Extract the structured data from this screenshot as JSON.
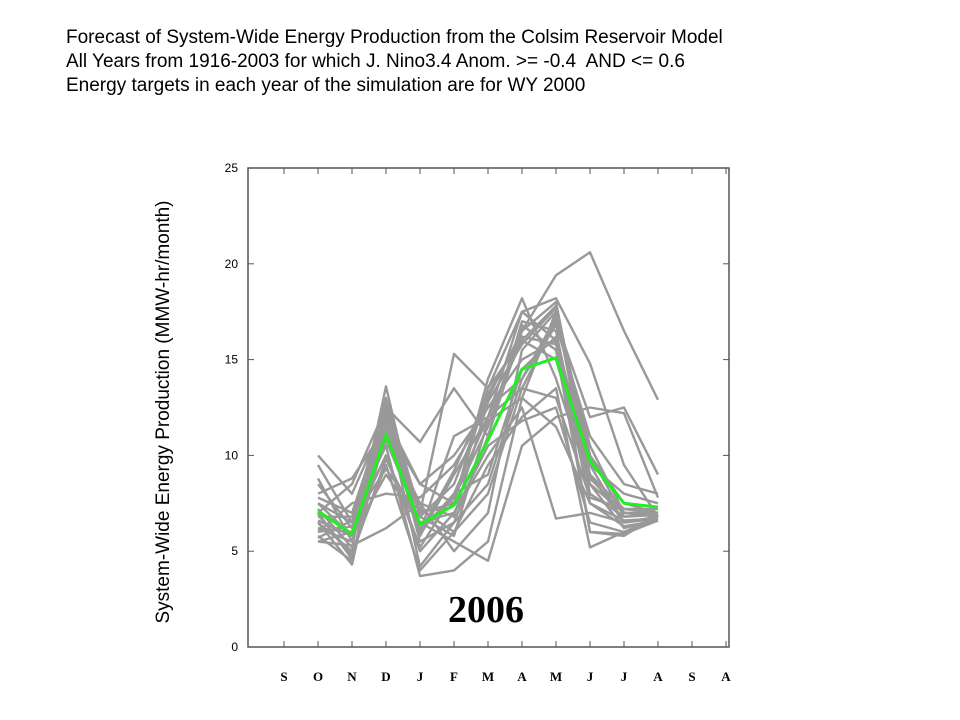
{
  "chart_data": {
    "type": "line",
    "title_lines": [
      "Forecast of System-Wide Energy Production from the Colsim Reservoir Model",
      "All Years from 1916-2003 for which J. Nino3.4 Anom. >= -0.4  AND <= 0.6",
      "Energy targets in each year of the simulation are for WY 2000"
    ],
    "ylabel": "System-Wide Energy Production (MMW-hr/month)",
    "xlabel": "",
    "annotation": "2006",
    "categories": [
      "S",
      "O",
      "N",
      "D",
      "J",
      "F",
      "M",
      "A",
      "M",
      "J",
      "J",
      "A",
      "S",
      "A"
    ],
    "ylim": [
      0,
      25
    ],
    "yticks": [
      0,
      5,
      10,
      15,
      20,
      25
    ],
    "grid": false,
    "colors": {
      "ensemble": "#999999",
      "highlight": "#22ee22",
      "axis": "#555555"
    },
    "ensemble": [
      [
        7.0,
        8.5,
        12.5,
        10.7,
        13.5,
        11.0,
        16.5,
        19.4,
        20.6,
        16.5,
        12.9
      ],
      [
        8.0,
        8.8,
        11.5,
        6.0,
        11.0,
        12.0,
        17.5,
        18.2,
        14.8,
        9.5,
        6.8
      ],
      [
        9.5,
        6.5,
        13.0,
        7.0,
        15.3,
        13.5,
        16.0,
        17.8,
        9.5,
        8.0,
        7.5
      ],
      [
        6.5,
        5.0,
        9.5,
        4.0,
        6.0,
        8.0,
        13.5,
        17.0,
        12.0,
        12.5,
        9.0
      ],
      [
        10.0,
        8.0,
        12.0,
        8.5,
        7.5,
        14.0,
        18.2,
        14.0,
        8.5,
        7.0,
        7.0
      ],
      [
        7.2,
        5.2,
        13.6,
        6.0,
        8.0,
        12.0,
        16.0,
        15.0,
        9.0,
        6.5,
        6.8
      ],
      [
        6.8,
        6.8,
        10.5,
        3.7,
        4.0,
        5.5,
        13.0,
        17.5,
        10.0,
        7.5,
        7.0
      ],
      [
        6.0,
        7.5,
        8.0,
        7.8,
        9.5,
        12.5,
        15.0,
        16.0,
        7.5,
        6.3,
        6.6
      ],
      [
        6.5,
        4.3,
        12.2,
        5.5,
        6.5,
        11.0,
        17.0,
        16.5,
        8.0,
        6.8,
        6.9
      ],
      [
        7.5,
        5.8,
        9.0,
        6.5,
        5.5,
        4.5,
        10.5,
        12.0,
        12.5,
        12.2,
        7.8
      ],
      [
        5.5,
        6.0,
        11.5,
        8.5,
        10.0,
        12.5,
        14.0,
        17.2,
        10.5,
        7.0,
        7.0
      ],
      [
        8.5,
        6.2,
        10.0,
        5.0,
        7.0,
        10.0,
        12.5,
        6.7,
        7.0,
        6.5,
        6.7
      ],
      [
        5.8,
        4.5,
        12.8,
        6.8,
        8.5,
        13.0,
        16.5,
        18.0,
        9.0,
        7.2,
        7.2
      ],
      [
        6.2,
        5.5,
        11.0,
        7.2,
        6.0,
        9.5,
        12.0,
        13.5,
        5.2,
        6.0,
        6.8
      ],
      [
        7.8,
        7.0,
        12.3,
        4.2,
        6.5,
        8.5,
        14.0,
        16.8,
        11.0,
        8.5,
        8.0
      ],
      [
        6.9,
        4.8,
        9.8,
        6.2,
        7.8,
        11.5,
        16.8,
        15.5,
        6.0,
        5.8,
        6.9
      ],
      [
        5.5,
        5.3,
        6.2,
        7.5,
        5.0,
        7.0,
        15.5,
        17.5,
        8.5,
        6.2,
        6.7
      ],
      [
        7.5,
        6.5,
        11.8,
        5.8,
        9.0,
        12.0,
        13.5,
        13.0,
        7.8,
        7.2,
        7.0
      ],
      [
        6.2,
        6.0,
        10.8,
        6.5,
        7.0,
        10.5,
        11.8,
        12.5,
        6.5,
        6.0,
        6.6
      ],
      [
        8.8,
        5.5,
        12.0,
        7.0,
        7.5,
        13.5,
        17.5,
        16.0,
        9.5,
        6.5,
        6.8
      ],
      [
        6.0,
        6.3,
        10.0,
        5.2,
        8.0,
        9.0,
        14.5,
        16.2,
        6.0,
        5.9,
        6.6
      ],
      [
        7.0,
        4.6,
        11.2,
        7.5,
        6.8,
        12.8,
        15.8,
        17.7,
        10.0,
        6.8,
        6.9
      ],
      [
        5.7,
        6.6,
        9.3,
        6.8,
        5.8,
        11.8,
        13.0,
        11.5,
        7.5,
        6.6,
        6.7
      ],
      [
        6.6,
        5.8,
        12.6,
        6.0,
        9.2,
        13.2,
        16.2,
        15.8,
        8.8,
        7.0,
        6.8
      ]
    ],
    "highlight": [
      7.1,
      5.9,
      11.1,
      6.4,
      7.4,
      10.8,
      14.5,
      15.1,
      9.7,
      7.5,
      7.3
    ]
  }
}
